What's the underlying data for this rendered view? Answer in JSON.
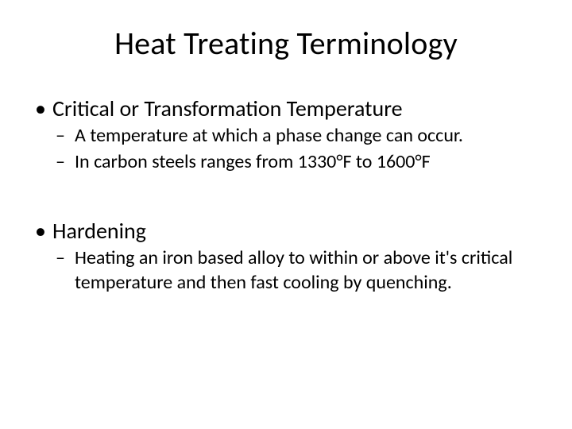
{
  "slide": {
    "title": "Heat Treating Terminology",
    "background_color": "#ffffff",
    "text_color": "#000000",
    "title_fontsize": 40,
    "bullet_level1_fontsize": 28,
    "bullet_level2_fontsize": 24,
    "bullets": [
      {
        "text": "Critical or Transformation Temperature",
        "sub": [
          "A temperature at which a phase change can occur.",
          "In carbon steels ranges from 1330°F to 1600°F"
        ]
      },
      {
        "text": "Hardening",
        "sub": [
          "Heating an iron based alloy to within or above it's critical temperature and then fast cooling by quenching."
        ]
      }
    ]
  }
}
